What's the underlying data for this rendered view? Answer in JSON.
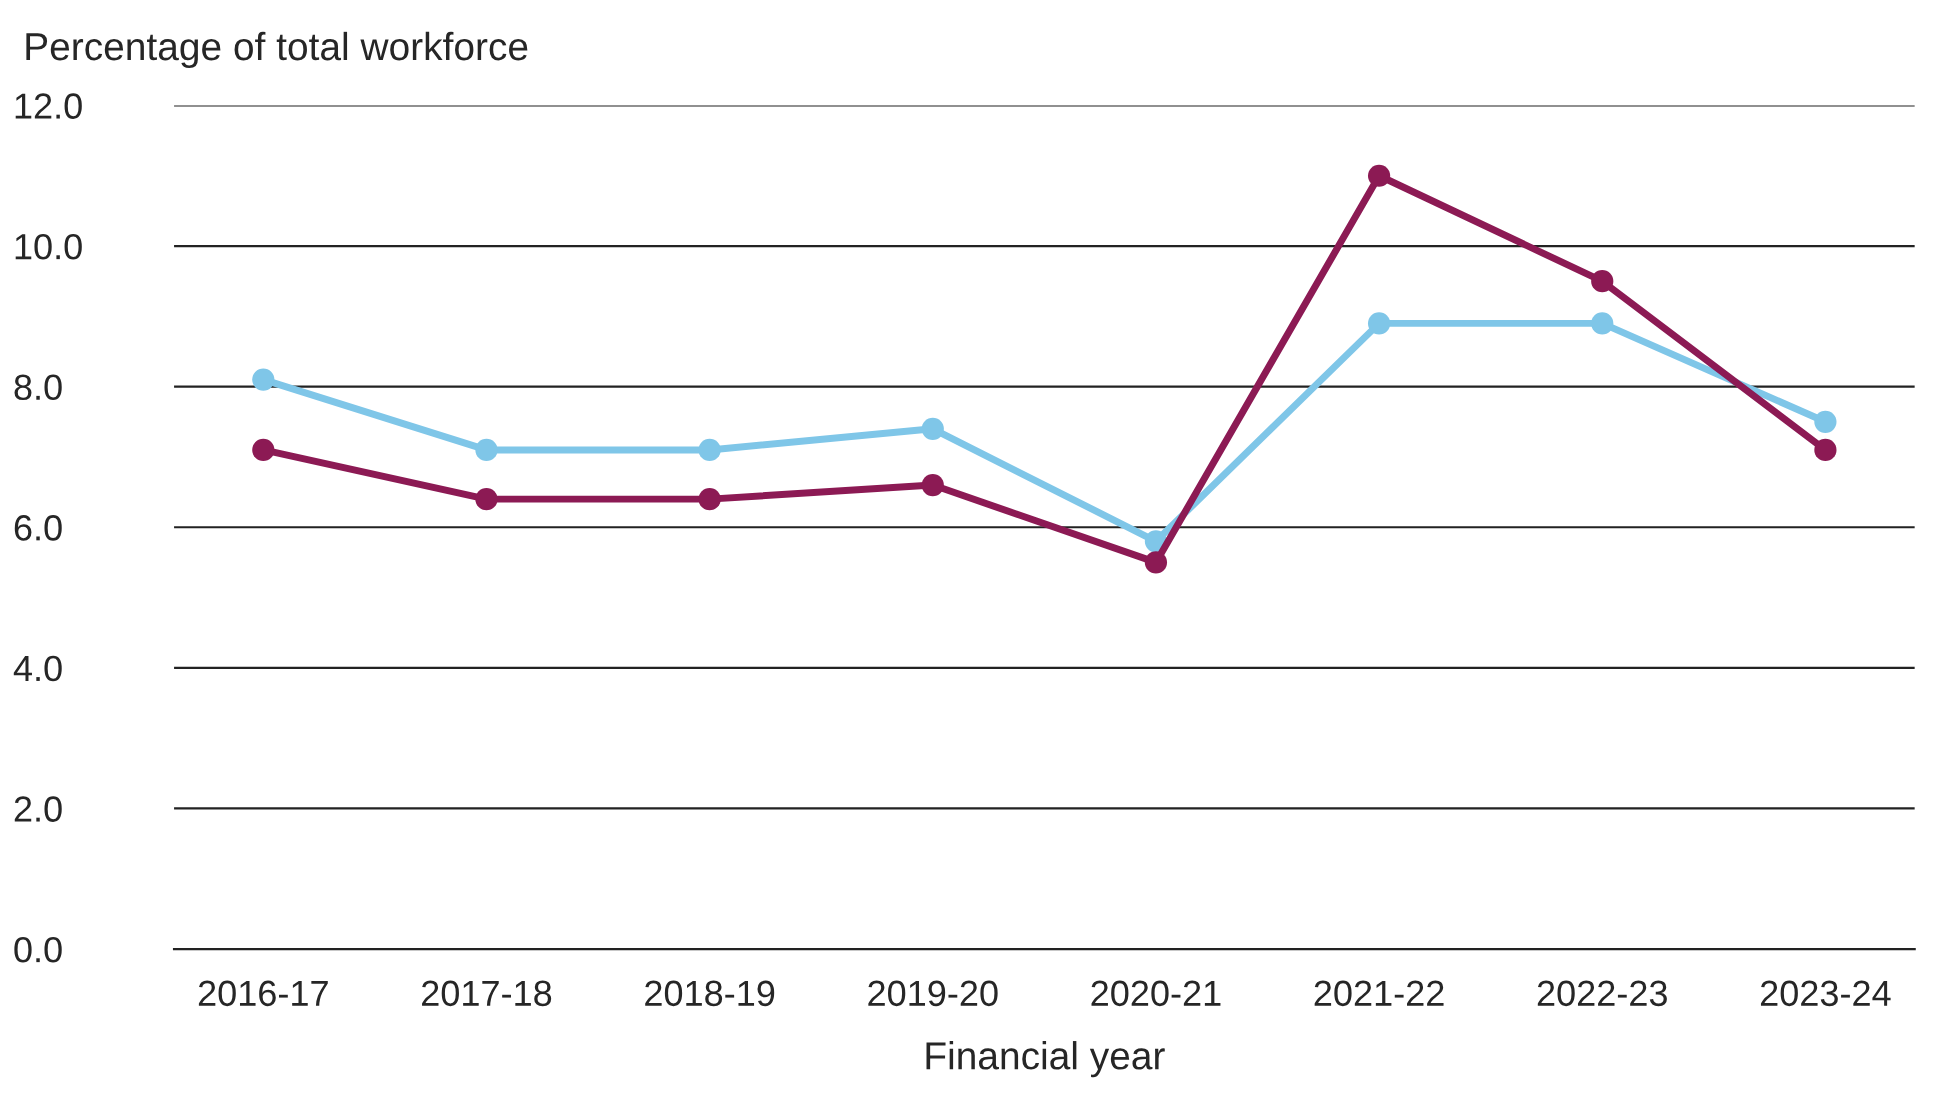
{
  "chart_data": {
    "type": "line",
    "ylabel": "Percentage of total workforce",
    "xlabel": "Financial year",
    "categories": [
      "2016-17",
      "2017-18",
      "2018-19",
      "2019-20",
      "2020-21",
      "2021-22",
      "2022-23",
      "2023-24"
    ],
    "series": [
      {
        "color": "#7fc6e8",
        "values": [
          8.1,
          7.1,
          7.1,
          7.4,
          5.8,
          8.9,
          8.9,
          7.5
        ]
      },
      {
        "color": "#8c1a54",
        "values": [
          7.1,
          6.4,
          6.4,
          6.6,
          5.5,
          11.0,
          9.5,
          7.1
        ]
      }
    ],
    "ylim": [
      0,
      12
    ],
    "yticks": [
      {
        "value": 0,
        "label": "0.0"
      },
      {
        "value": 2,
        "label": "2.0"
      },
      {
        "value": 4,
        "label": "4.0"
      },
      {
        "value": 6,
        "label": "6.0"
      },
      {
        "value": 8,
        "label": "8.0"
      },
      {
        "value": 10,
        "label": "10.0"
      },
      {
        "value": 12,
        "label": "12.0"
      }
    ],
    "grid": "y",
    "marker": "circle",
    "line_style": "solid",
    "legend": false
  }
}
